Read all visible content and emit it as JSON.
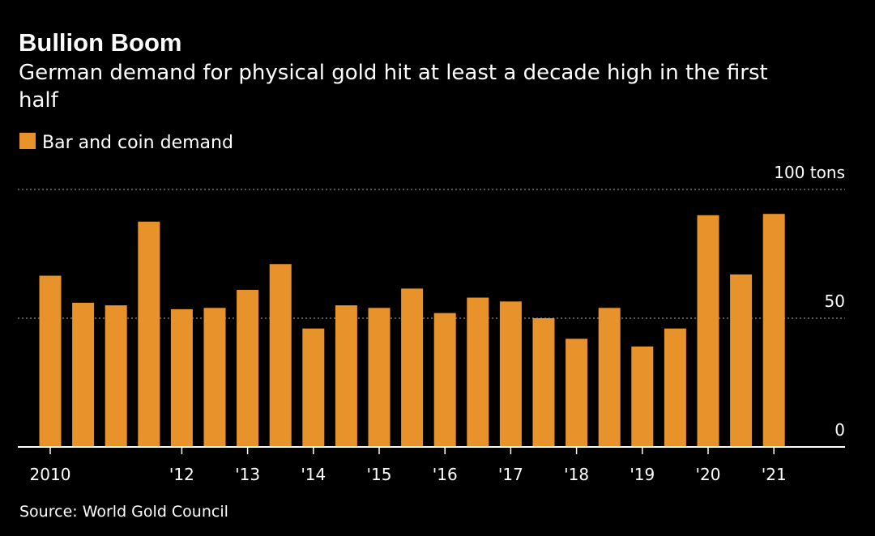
{
  "chart_data": {
    "type": "bar",
    "title": "Bullion Boom",
    "subtitle_lines": [
      "German demand for physical gold hit at least a decade high in the first",
      "half"
    ],
    "legend": [
      "Bar and coin demand"
    ],
    "ylim": [
      0,
      100
    ],
    "y_ticks": [
      {
        "value": 100,
        "label": "100 tons"
      },
      {
        "value": 50,
        "label": "50"
      },
      {
        "value": 0,
        "label": "0"
      }
    ],
    "grid": "dotted horizontal",
    "x_ticks": [
      "2010",
      "'12",
      "'13",
      "'14",
      "'15",
      "'16",
      "'17",
      "'18",
      "'19",
      "'20",
      "'21"
    ],
    "categories": [
      "H1 2010",
      "H2 2010",
      "H1 2011",
      "H2 2011",
      "H1 2012",
      "H2 2012",
      "H1 2013",
      "H2 2013",
      "H1 2014",
      "H2 2014",
      "H1 2015",
      "H2 2015",
      "H1 2016",
      "H2 2016",
      "H1 2017",
      "H2 2017",
      "H1 2018",
      "H2 2018",
      "H1 2019",
      "H2 2019",
      "H1 2020",
      "H2 2020",
      "H1 2021"
    ],
    "series": [
      {
        "name": "Bar and coin demand",
        "values": [
          66.5,
          56,
          55,
          87.5,
          53.5,
          54,
          61,
          71,
          46,
          55,
          54,
          61.5,
          52,
          58,
          56.5,
          50,
          42,
          54,
          39,
          46,
          90,
          67,
          90.5
        ]
      }
    ],
    "source": "Source: World Gold Council"
  },
  "colors": {
    "background": "#000000",
    "bar": "#E8922B",
    "text": "#ffffff",
    "grid": "#8a8a8a",
    "axis": "#ffffff"
  }
}
